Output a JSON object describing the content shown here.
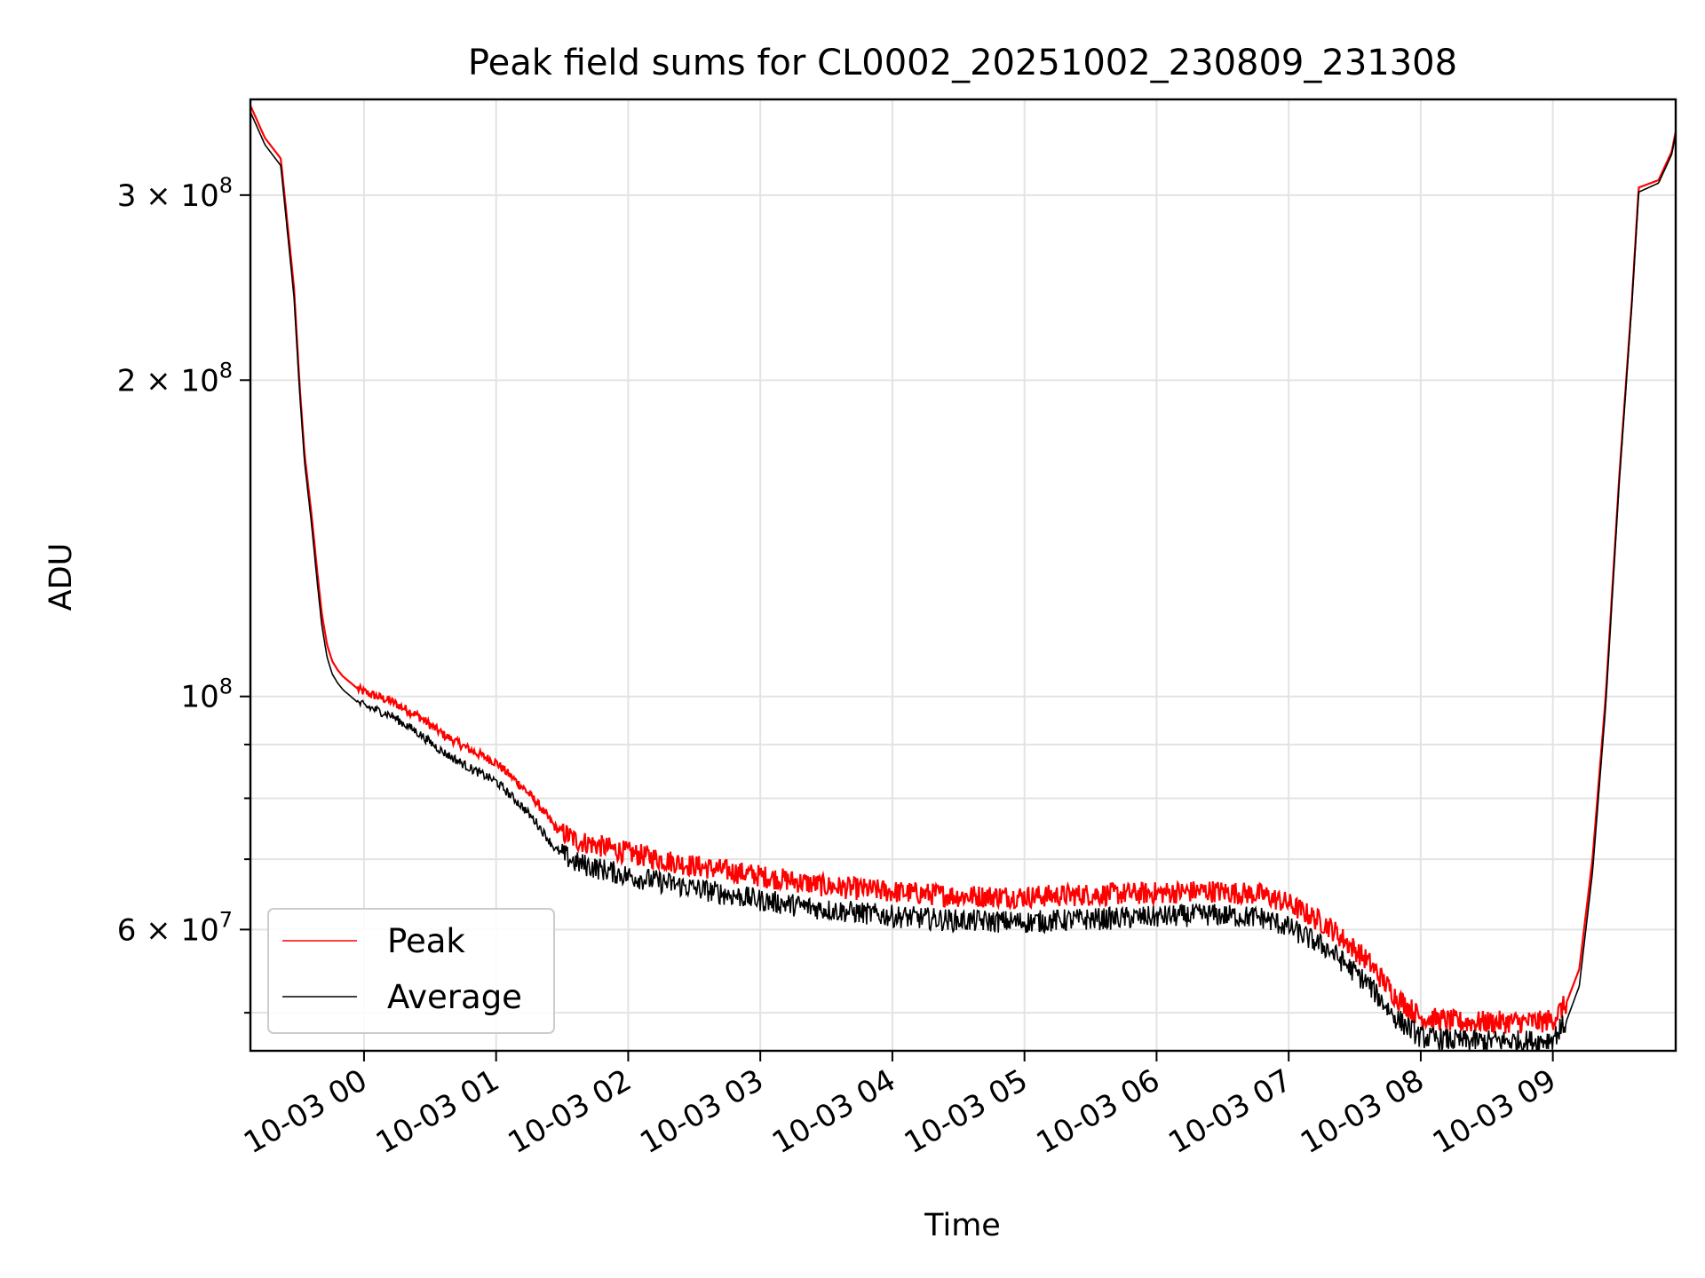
{
  "chart_data": {
    "type": "line",
    "title": "Peak field sums for CL0002_20251002_230809_231308",
    "xlabel": "Time",
    "ylabel": "ADU",
    "y_scale": "log",
    "ylim": [
      46000000,
      370000000
    ],
    "xlim_hours": [
      -0.86,
      9.93
    ],
    "grid": true,
    "legend_position": "lower-left",
    "x_ticks": [
      {
        "hour": 0,
        "label": "10-03 00"
      },
      {
        "hour": 1,
        "label": "10-03 01"
      },
      {
        "hour": 2,
        "label": "10-03 02"
      },
      {
        "hour": 3,
        "label": "10-03 03"
      },
      {
        "hour": 4,
        "label": "10-03 04"
      },
      {
        "hour": 5,
        "label": "10-03 05"
      },
      {
        "hour": 6,
        "label": "10-03 06"
      },
      {
        "hour": 7,
        "label": "10-03 07"
      },
      {
        "hour": 8,
        "label": "10-03 08"
      },
      {
        "hour": 9,
        "label": "10-03 09"
      }
    ],
    "y_major_ticks": [
      {
        "value": 300000000,
        "base": "3 × 10",
        "exp": "8"
      },
      {
        "value": 200000000,
        "base": "2 × 10",
        "exp": "8"
      },
      {
        "value": 100000000,
        "base": "10",
        "exp": "8"
      },
      {
        "value": 60000000,
        "base": "6 × 10",
        "exp": "7"
      }
    ],
    "y_minor_gridlines": [
      50000000,
      70000000,
      80000000,
      90000000
    ],
    "x_hours": [
      -0.86,
      -0.75,
      -0.63,
      -0.53,
      -0.49,
      -0.45,
      -0.4,
      -0.35,
      -0.32,
      -0.28,
      -0.24,
      -0.2,
      -0.16,
      -0.12,
      -0.08,
      -0.04,
      0.0,
      0.2,
      0.4,
      0.6,
      0.8,
      1.0,
      1.2,
      1.3,
      1.45,
      1.6,
      2.0,
      2.5,
      3.0,
      3.5,
      4.0,
      4.5,
      5.0,
      5.5,
      6.0,
      6.4,
      6.8,
      7.0,
      7.3,
      7.6,
      7.8,
      8.0,
      8.3,
      8.6,
      8.9,
      9.0,
      9.1,
      9.2,
      9.3,
      9.4,
      9.5,
      9.6,
      9.65,
      9.8,
      9.9,
      9.93
    ],
    "series": [
      {
        "name": "Peak",
        "color": "#ff0000",
        "values": [
          365000000,
          340000000,
          325000000,
          245000000,
          200000000,
          170000000,
          150000000,
          130000000,
          120000000,
          112000000,
          108000000,
          106000000,
          104500000,
          103500000,
          102500000,
          101500000,
          101000000,
          99000000,
          96000000,
          92000000,
          89000000,
          86500000,
          82000000,
          79500000,
          75000000,
          73000000,
          71000000,
          69000000,
          67500000,
          66000000,
          65200000,
          64600000,
          64500000,
          64800000,
          65000000,
          65300000,
          64800000,
          63500000,
          60500000,
          56000000,
          52000000,
          49500000,
          49000000,
          49000000,
          49000000,
          49300000,
          51000000,
          55000000,
          70000000,
          100000000,
          160000000,
          240000000,
          305000000,
          310000000,
          330000000,
          345000000
        ]
      },
      {
        "name": "Average",
        "color": "#000000",
        "values": [
          360000000,
          335000000,
          320000000,
          240000000,
          197000000,
          167000000,
          147000000,
          127000000,
          117000000,
          109000000,
          105000000,
          103000000,
          101500000,
          100500000,
          99500000,
          98500000,
          98000000,
          96000000,
          92500000,
          88500000,
          85500000,
          83000000,
          78500000,
          76000000,
          71500000,
          69500000,
          67500000,
          65700000,
          64000000,
          62700000,
          61800000,
          61200000,
          61000000,
          61400000,
          61700000,
          62000000,
          61600000,
          60300000,
          57500000,
          53300000,
          49600000,
          47400000,
          47000000,
          47000000,
          47000000,
          47300000,
          49000000,
          53000000,
          68000000,
          98000000,
          158000000,
          238000000,
          302000000,
          308000000,
          328000000,
          343000000
        ]
      }
    ]
  }
}
